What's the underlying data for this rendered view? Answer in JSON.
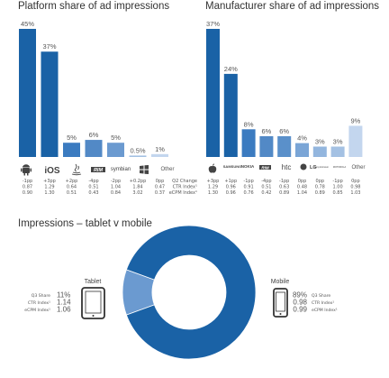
{
  "charts": {
    "platform": {
      "title": "Platform share of ad impressions",
      "row_labels": [
        "Q2 Change",
        "CTR Index¹",
        "eCPM Index¹"
      ]
    },
    "manufacturer": {
      "title": "Manufacturer share of ad impressions"
    },
    "device": {
      "title": "Impressions – tablet v mobile",
      "tablet_label": "Tablet",
      "mobile_label": "Mobile",
      "tablet_stats": [
        {
          "label": "Q3 Share",
          "value": "11%"
        },
        {
          "label": "CTR Index¹",
          "value": "1.14"
        },
        {
          "label": "eCPM Index¹",
          "value": "1.06"
        }
      ],
      "mobile_stats": [
        {
          "label": "Q3 Share",
          "value": "89%"
        },
        {
          "label": "CTR Index¹",
          "value": "0.98"
        },
        {
          "label": "eCPM Index¹",
          "value": "0.99"
        }
      ]
    }
  },
  "chart_data": [
    {
      "type": "bar",
      "title": "Platform share of ad impressions",
      "categories": [
        "Android",
        "iOS",
        "Java",
        "RIM",
        "Symbian",
        "Windows",
        "Other"
      ],
      "values": [
        45,
        37,
        5,
        6,
        5,
        0.5,
        1
      ],
      "value_labels": [
        "45%",
        "37%",
        "5%",
        "6%",
        "5%",
        "0.5%",
        "1%"
      ],
      "colors": [
        "#1a62a6",
        "#1a62a6",
        "#3b7bc0",
        "#5289c6",
        "#6b9ad0",
        "#a4c1e3",
        "#c3d6ee"
      ],
      "q2_change": [
        "-1pp",
        "+3pp",
        "+2pp",
        "-4pp",
        "-2pp",
        "+0.2pp",
        "0pp"
      ],
      "ctr_index": [
        "0.87",
        "1.29",
        "0.64",
        "0.51",
        "1.04",
        "1.84",
        "0.47"
      ],
      "ecpm_index": [
        "0.90",
        "1.30",
        "0.51",
        "0.43",
        "0.84",
        "3.02",
        "0.37"
      ],
      "category_labels": [
        "",
        "iOS",
        "",
        "",
        "symbian",
        "",
        "Other"
      ],
      "ylim": [
        0,
        45
      ]
    },
    {
      "type": "bar",
      "title": "Manufacturer share of ad impressions",
      "categories": [
        "Apple",
        "Samsung",
        "Nokia",
        "RIM",
        "HTC",
        "LG",
        "Sony Ericsson",
        "Motorola",
        "Other"
      ],
      "values": [
        37,
        24,
        8,
        6,
        6,
        4,
        3,
        3,
        9
      ],
      "value_labels": [
        "37%",
        "24%",
        "8%",
        "6%",
        "6%",
        "4%",
        "3%",
        "3%",
        "9%"
      ],
      "colors": [
        "#1a62a6",
        "#1a62a6",
        "#3b7bc0",
        "#5289c6",
        "#5a90ca",
        "#7aa5d6",
        "#93b6de",
        "#a4c1e3",
        "#c3d6ee"
      ],
      "category_labels": [
        "",
        "SAMSUNG",
        "NOKIA",
        "RIM",
        "htc",
        "LG",
        "Sony Ericsson",
        "MOTOROLA",
        "Other"
      ],
      "q2_change": [
        "+3pp",
        "+1pp",
        "-1pp",
        "-4pp",
        "-1pp",
        "0pp",
        "0pp",
        "-1pp",
        "0pp"
      ],
      "ctr_index": [
        "1.29",
        "0.96",
        "0.91",
        "0.51",
        "0.63",
        "0.48",
        "0.78",
        "1.00",
        "0.98"
      ],
      "ecpm_index": [
        "1.30",
        "0.96",
        "0.76",
        "0.42",
        "0.89",
        "1.04",
        "0.89",
        "0.85",
        "1.03"
      ],
      "ylim": [
        0,
        37
      ]
    },
    {
      "type": "pie",
      "title": "Impressions – tablet v mobile",
      "categories": [
        "Tablet",
        "Mobile"
      ],
      "values": [
        11,
        89
      ],
      "colors": [
        "#6b9ad0",
        "#1a62a6"
      ]
    }
  ]
}
